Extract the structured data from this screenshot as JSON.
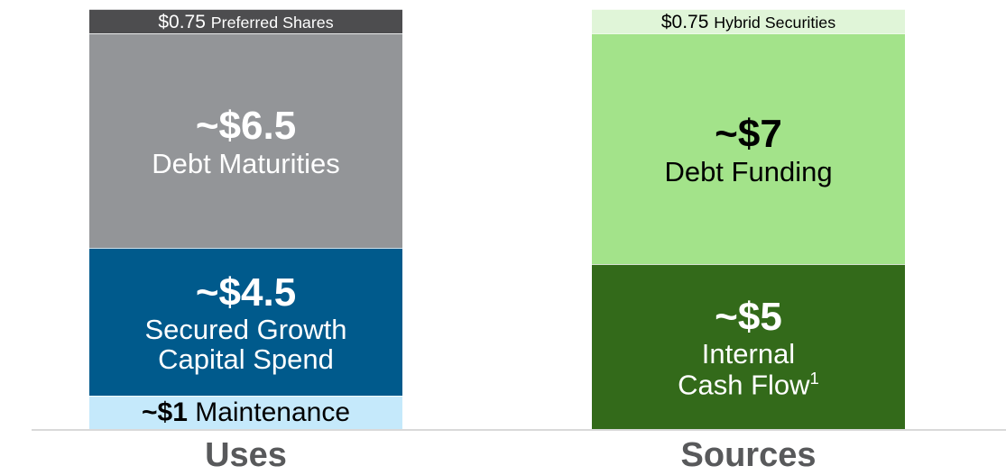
{
  "chart_data": {
    "type": "stacked_bar",
    "stacks": [
      {
        "name": "Uses",
        "segments": [
          {
            "name": "Maintenance",
            "value": 1,
            "value_label": "~$1",
            "color": "#c5e9fb",
            "text_color": "#000000"
          },
          {
            "name": "Secured Growth\nCapital Spend",
            "value": 4.5,
            "value_label": "~$4.5",
            "color": "#005a8c",
            "text_color": "#ffffff"
          },
          {
            "name": "Debt Maturities",
            "value": 6.5,
            "value_label": "~$6.5",
            "color": "#939598",
            "text_color": "#ffffff"
          },
          {
            "name": "Preferred Shares",
            "value": 0.75,
            "value_label": "$0.75",
            "color": "#4d4d4f",
            "text_color": "#ffffff"
          }
        ]
      },
      {
        "name": "Sources",
        "segments": [
          {
            "name": "Internal\nCash Flow",
            "note": "1",
            "value": 5,
            "value_label": "~$5",
            "color": "#336a1a",
            "text_color": "#ffffff"
          },
          {
            "name": "Debt Funding",
            "value": 7,
            "value_label": "~$7",
            "color": "#a3e38a",
            "text_color": "#000000"
          },
          {
            "name": "Hybrid Securities",
            "value": 0.75,
            "value_label": "$0.75",
            "color": "#e0f5d8",
            "text_color": "#000000"
          }
        ]
      }
    ]
  }
}
